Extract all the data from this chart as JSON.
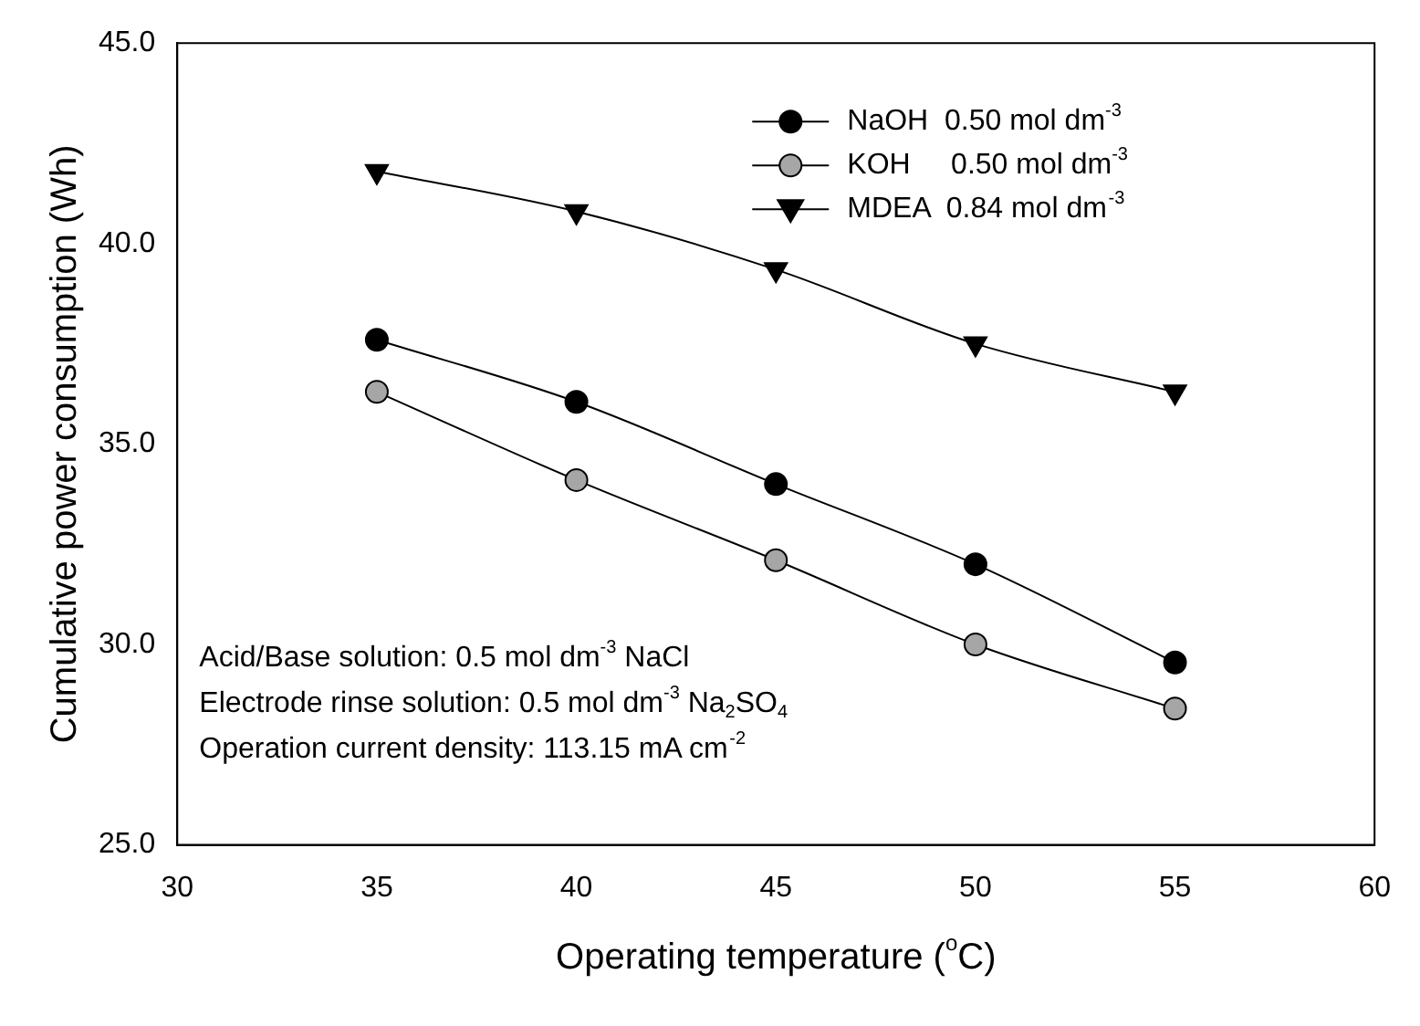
{
  "chart_data": {
    "type": "line",
    "xlabel": "Operating temperature ($^{o}$C)",
    "ylabel": "Cumulative power consumption (Wh)",
    "x": [
      35,
      40,
      45,
      50,
      55
    ],
    "series": [
      {
        "name": "NaOH  0.50 mol dm$^{-3}$",
        "color": "#000000",
        "marker": "circle",
        "values": [
          37.6,
          36.05,
          34.0,
          32.0,
          29.55
        ]
      },
      {
        "name": "KOH     0.50 mol dm$^{-3}$",
        "color": "#a6a6a6",
        "marker": "circle",
        "values": [
          36.3,
          34.1,
          32.1,
          30.0,
          28.4
        ]
      },
      {
        "name": "MDEA  0.84 mol dm$^{-3}$",
        "color": "#000000",
        "marker": "triangle",
        "values": [
          41.8,
          40.8,
          39.35,
          37.5,
          36.3
        ]
      }
    ],
    "xlim": [
      30,
      60
    ],
    "xticks": [
      30,
      35,
      40,
      45,
      50,
      55,
      60
    ],
    "ylim": [
      25,
      45
    ],
    "yticks": [
      {
        "value": 25,
        "label": "25.0"
      },
      {
        "value": 30,
        "label": "30.0"
      },
      {
        "value": 35,
        "label": "35.0"
      },
      {
        "value": 40,
        "label": "40.0"
      },
      {
        "value": 45,
        "label": "45.0"
      }
    ],
    "grid": false,
    "legend": "top right",
    "line_style": "solid",
    "annotations": [
      "Acid/Base solution: 0.5 mol dm$^{-3}$ NaCl",
      "Electrode rinse solution: 0.5 mol dm$^{-3}$ Na$_{2}$SO$_{4}$",
      "Operation current density: 113.15 mA cm$^{-2}$"
    ]
  }
}
